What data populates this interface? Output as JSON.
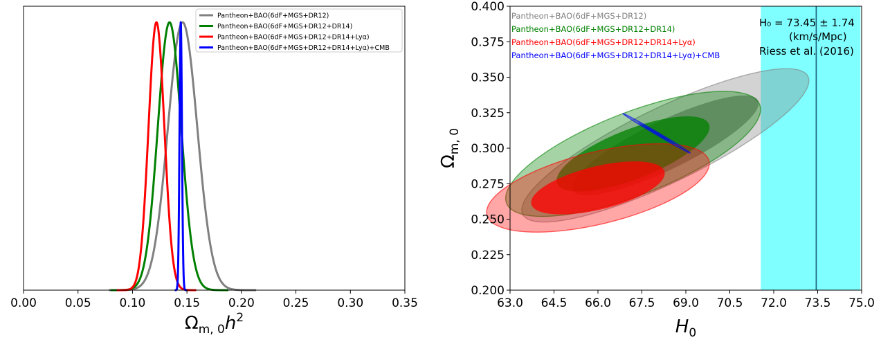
{
  "chart_data": [
    {
      "type": "line",
      "xlabel_main": "Ω",
      "xlabel_sub": "m, 0",
      "xlabel_tail": "h",
      "xlabel_sup": "2",
      "xlim": [
        0.0,
        0.35
      ],
      "ylim": [
        0,
        1.06
      ],
      "grid": false,
      "legend_position": "top-right",
      "x_ticks": [
        "0.00",
        "0.05",
        "0.10",
        "0.15",
        "0.20",
        "0.25",
        "0.30",
        "0.35"
      ],
      "series": [
        {
          "name": "Pantheon+BAO(6dF+MGS+DR12)",
          "color": "#808080",
          "mean": 0.146,
          "sigma": 0.0135,
          "peak": 1.0
        },
        {
          "name": "Pantheon+BAO(6dF+MGS+DR12+DR14)",
          "color": "#008000",
          "mean": 0.134,
          "sigma": 0.0108,
          "peak": 1.0
        },
        {
          "name": "Pantheon+BAO(6dF+MGS+DR12+DR14+Lyα)",
          "color": "#ff0000",
          "mean": 0.122,
          "sigma": 0.0073,
          "peak": 1.0
        },
        {
          "name": "Pantheon+BAO(6dF+MGS+DR12+DR14+Lyα)+CMB",
          "color": "#0000ff",
          "mean": 0.1443,
          "sigma": 0.0011,
          "peak": 1.0
        }
      ]
    },
    {
      "type": "scatter",
      "xlabel_main": "H",
      "xlabel_sub": "0",
      "ylabel_main": "Ω",
      "ylabel_sub": "m, 0",
      "xlim": [
        63.0,
        75.0
      ],
      "ylim": [
        0.2,
        0.4
      ],
      "grid": false,
      "legend_position": "top-left",
      "x_ticks": [
        "63.0",
        "64.5",
        "66.0",
        "67.5",
        "69.0",
        "70.5",
        "72.0",
        "73.5",
        "75.0"
      ],
      "y_ticks": [
        "0.200",
        "0.225",
        "0.250",
        "0.275",
        "0.300",
        "0.325",
        "0.350",
        "0.375",
        "0.400"
      ],
      "band": {
        "x0": 71.56,
        "x1": 74.96,
        "color": "#00ffff",
        "line": 73.45,
        "line_color": "#1a5c7a"
      },
      "annotation": [
        "H₀ = 73.45 ± 1.74",
        "(km/s/Mpc)",
        "Riess et al. (2016)"
      ],
      "series": [
        {
          "name": "Pantheon+BAO(6dF+MGS+DR12)",
          "color": "#808080",
          "center": [
            68.3,
            0.302
          ],
          "semi_major": 4.9,
          "semi_minor": 0.029,
          "angle": 0.0093,
          "inner_scale": 0.65
        },
        {
          "name": "Pantheon+BAO(6dF+MGS+DR12+DR14)",
          "color": "#008000",
          "center": [
            67.2,
            0.296
          ],
          "semi_major": 4.35,
          "semi_minor": 0.031,
          "angle": 0.0072,
          "inner_scale": 0.6
        },
        {
          "name": "Pantheon+BAO(6dF+MGS+DR12+DR14+Lyα)",
          "color": "#ff0000",
          "center": [
            66.0,
            0.272
          ],
          "semi_major": 3.8,
          "semi_minor": 0.026,
          "angle": 0.0045,
          "inner_scale": 0.6
        },
        {
          "name": "Pantheon+BAO(6dF+MGS+DR12+DR14+Lyα)+CMB",
          "color": "#0000ff",
          "center": [
            68.0,
            0.3105
          ],
          "semi_major": 1.15,
          "semi_minor": 0.0012,
          "angle": -0.0121,
          "inner_scale": 0.55
        }
      ]
    }
  ]
}
